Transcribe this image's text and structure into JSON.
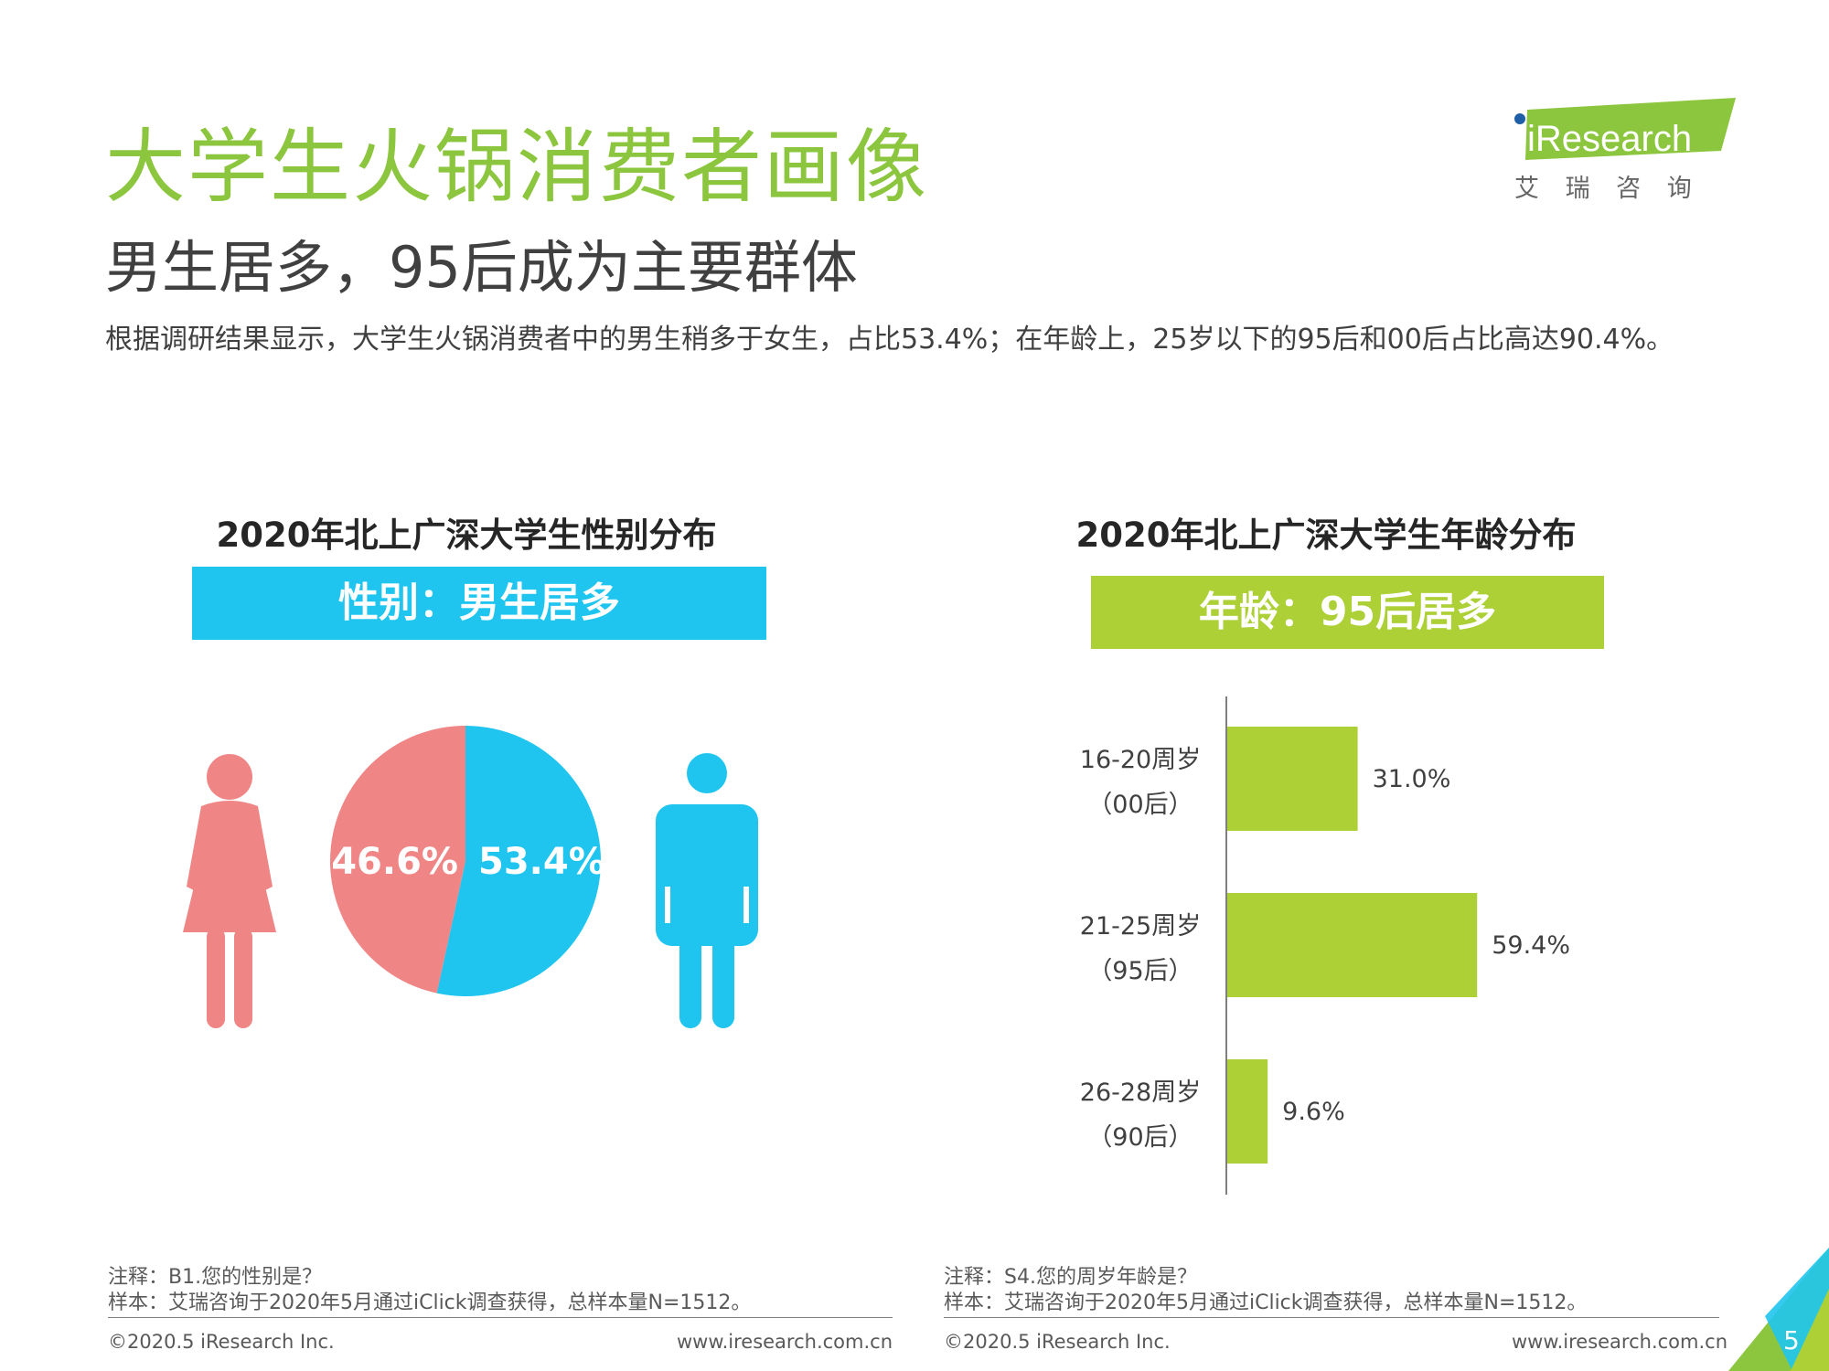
{
  "header": {
    "title": "大学生火锅消费者画像",
    "subtitle": "男生居多，95后成为主要群体",
    "summary": "根据调研结果显示，大学生火锅消费者中的男生稍多于女生，占比53.4%；在年龄上，25岁以下的95后和00后占比高达90.4%。"
  },
  "logo": {
    "brand": "iResearch",
    "chinese": "艾 瑞 咨 询"
  },
  "colors": {
    "green": "#8cc63f",
    "blue": "#1fc5ef",
    "pink": "#f08585",
    "lime": "#acd036"
  },
  "chart_data": [
    {
      "type": "pie",
      "title": "2020年北上广深大学生性别分布",
      "banner": "性别：男生居多",
      "slices": [
        {
          "label": "46.6%",
          "value": 46.6,
          "color": "#f08585",
          "icon": "female-icon"
        },
        {
          "label": "53.4%",
          "value": 53.4,
          "color": "#1fc5ef",
          "icon": "male-icon"
        }
      ]
    },
    {
      "type": "bar",
      "orientation": "horizontal",
      "title": "2020年北上广深大学生年龄分布",
      "banner": "年龄：95后居多",
      "categories": [
        {
          "line1": "16-20周岁",
          "line2": "（00后）"
        },
        {
          "line1": "21-25周岁",
          "line2": "（95后）"
        },
        {
          "line1": "26-28周岁",
          "line2": "（90后）"
        }
      ],
      "values": [
        31.0,
        59.4,
        9.6
      ],
      "value_labels": [
        "31.0%",
        "59.4%",
        "9.6%"
      ],
      "xlim": [
        0,
        100
      ],
      "color": "#acd036"
    }
  ],
  "notes": {
    "left": {
      "line1": "注释：B1.您的性别是？",
      "line2": "样本：艾瑞咨询于2020年5月通过iClick调查获得，总样本量N=1512。"
    },
    "right": {
      "line1": "注释：S4.您的周岁年龄是？",
      "line2": "样本：艾瑞咨询于2020年5月通过iClick调查获得，总样本量N=1512。"
    }
  },
  "footer": {
    "copyright": "©2020.5 iResearch Inc.",
    "website": "www.iresearch.com.cn",
    "page": "5"
  }
}
